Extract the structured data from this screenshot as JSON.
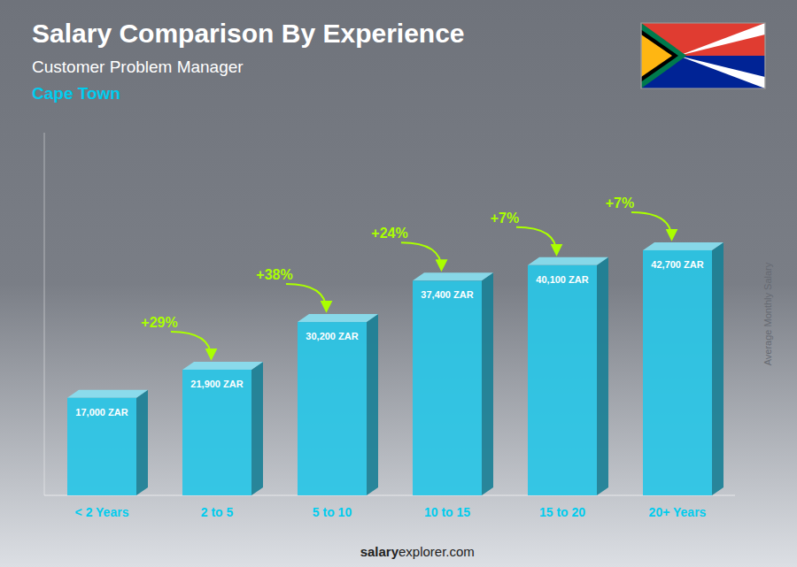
{
  "chart_data": {
    "type": "bar",
    "title": "Salary Comparison By Experience",
    "subtitle": [
      "Customer Problem Manager",
      "Cape Town"
    ],
    "ylabel": "Average Monthly Salary",
    "categories": [
      "< 2 Years",
      "2 to 5",
      "5 to 10",
      "10 to 15",
      "15 to 20",
      "20+ Years"
    ],
    "values": [
      17000,
      21900,
      30200,
      37400,
      40100,
      42700
    ],
    "value_labels": [
      "17,000 ZAR",
      "21,900 ZAR",
      "30,200 ZAR",
      "37,400 ZAR",
      "40,100 ZAR",
      "42,700 ZAR"
    ],
    "data_labels": true,
    "color": "#29c5e6",
    "ylim": [
      0,
      63196
    ],
    "yticks": [],
    "tick_labels": "x",
    "grid": false,
    "annotations": [
      "salary",
      "explorer.com",
      "+29%",
      "+38%",
      "+24%",
      "+7%",
      "+7%"
    ]
  }
}
